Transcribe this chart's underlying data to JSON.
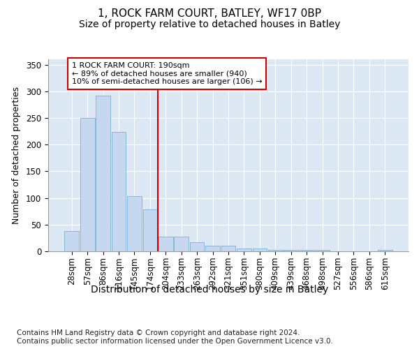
{
  "title1": "1, ROCK FARM COURT, BATLEY, WF17 0BP",
  "title2": "Size of property relative to detached houses in Batley",
  "xlabel": "Distribution of detached houses by size in Batley",
  "ylabel": "Number of detached properties",
  "categories": [
    "28sqm",
    "57sqm",
    "86sqm",
    "116sqm",
    "145sqm",
    "174sqm",
    "204sqm",
    "233sqm",
    "263sqm",
    "292sqm",
    "321sqm",
    "351sqm",
    "380sqm",
    "409sqm",
    "439sqm",
    "468sqm",
    "498sqm",
    "527sqm",
    "556sqm",
    "586sqm",
    "615sqm"
  ],
  "values": [
    38,
    250,
    292,
    224,
    103,
    78,
    28,
    28,
    17,
    10,
    10,
    5,
    5,
    3,
    3,
    3,
    2,
    0,
    0,
    0,
    3
  ],
  "bar_color": "#c5d8f0",
  "bar_edge_color": "#7bafd4",
  "vline_x": 6.0,
  "vline_color": "#cc0000",
  "annotation_text": "1 ROCK FARM COURT: 190sqm\n← 89% of detached houses are smaller (940)\n10% of semi-detached houses are larger (106) →",
  "annotation_box_color": "white",
  "annotation_box_edge_color": "#cc0000",
  "footnote": "Contains HM Land Registry data © Crown copyright and database right 2024.\nContains public sector information licensed under the Open Government Licence v3.0.",
  "ylim": [
    0,
    360
  ],
  "yticks": [
    0,
    50,
    100,
    150,
    200,
    250,
    300,
    350
  ],
  "plot_bg_color": "#dce9f5",
  "title1_fontsize": 11,
  "title2_fontsize": 10,
  "xlabel_fontsize": 10,
  "ylabel_fontsize": 9,
  "tick_fontsize": 8.5,
  "footnote_fontsize": 7.5
}
